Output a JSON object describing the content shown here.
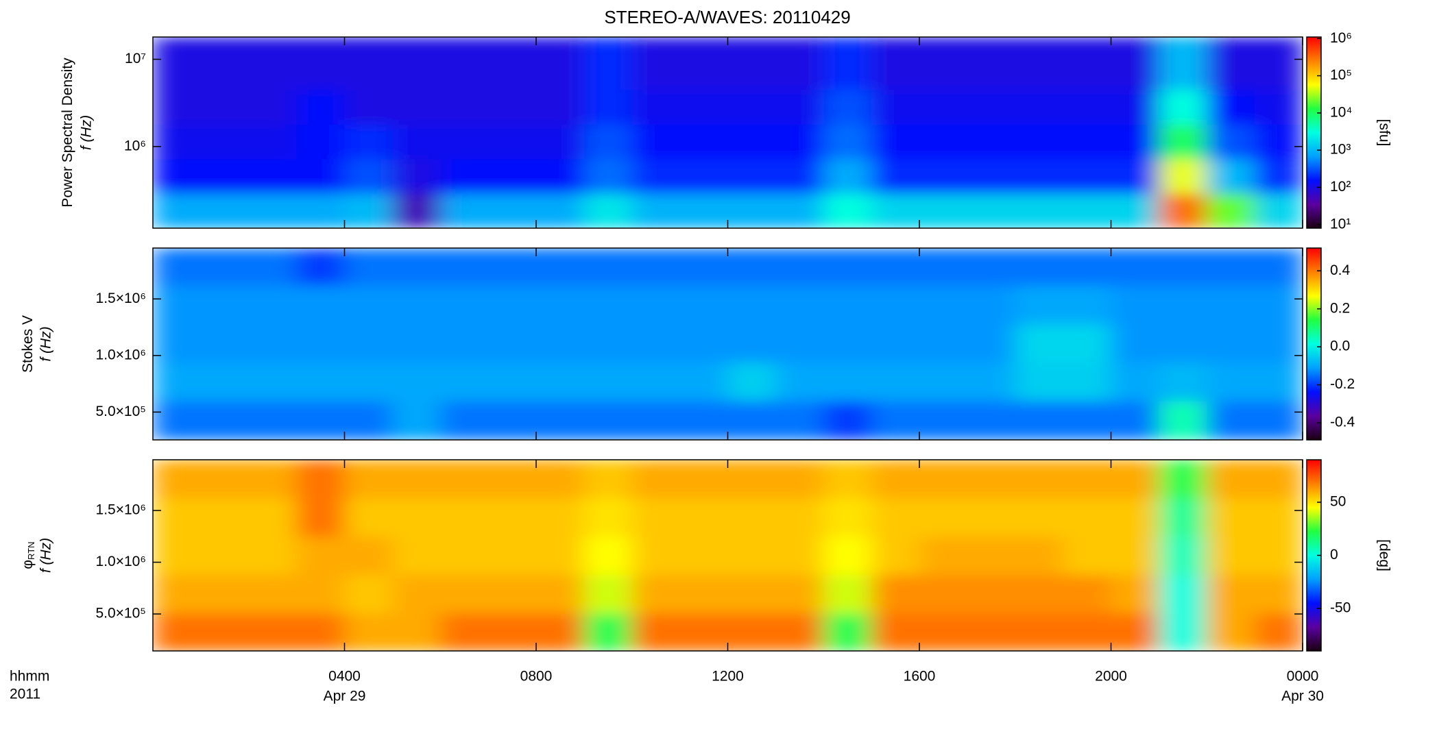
{
  "chart_data": {
    "type": "heatmap-stack",
    "title": "STEREO-A/WAVES: 20110429",
    "xlim": [
      0,
      24
    ],
    "xticks": [
      {
        "value": 4,
        "label": "0400"
      },
      {
        "value": 8,
        "label": "0800"
      },
      {
        "value": 12,
        "label": "1200"
      },
      {
        "value": 16,
        "label": "1600"
      },
      {
        "value": 20,
        "label": "2000"
      },
      {
        "value": 24,
        "label": "0000"
      }
    ],
    "date_labels": [
      {
        "value": 4,
        "label": "Apr 29"
      },
      {
        "value": 24,
        "label": "Apr 30"
      }
    ],
    "x_label": "hhmm",
    "x_sublabel": "2011",
    "x_edges": [
      0,
      1,
      2,
      3,
      4,
      5,
      6,
      7,
      8,
      9,
      10,
      11,
      12,
      13,
      14,
      15,
      16,
      17,
      18,
      19,
      20,
      21,
      22,
      23,
      24
    ],
    "colormap": [
      "#1a0010",
      "#5a00a0",
      "#0010ff",
      "#00a0ff",
      "#00ffe0",
      "#20ff40",
      "#ffff00",
      "#ff8000",
      "#ff0000"
    ],
    "panels": [
      {
        "type": "heatmap",
        "ylabel": "Power Spectral Density",
        "ylabel2": "f (Hz)",
        "clabel": "[sfu]",
        "yscale": "log",
        "cscale": "log",
        "ylim": [
          116000,
          18000000
        ],
        "yticks": [
          {
            "value": 1000000,
            "label": "10⁶"
          },
          {
            "value": 10000000,
            "label": "10⁷"
          }
        ],
        "clim": [
          8,
          1100000
        ],
        "cticks": [
          {
            "value": 10,
            "label": "10¹"
          },
          {
            "value": 100,
            "label": "10²"
          },
          {
            "value": 1000,
            "label": "10³"
          },
          {
            "value": 10000,
            "label": "10⁴"
          },
          {
            "value": 100000,
            "label": "10⁵"
          },
          {
            "value": 1000000,
            "label": "10⁶"
          }
        ],
        "y_edges": [
          116000,
          290000,
          720000,
          1800000,
          4500000,
          18000000
        ],
        "z": [
          [
            800,
            800,
            800,
            800,
            1000,
            50,
            800,
            800,
            800,
            2000,
            900,
            900,
            900,
            900,
            3000,
            1500,
            1500,
            1500,
            1500,
            1500,
            1500,
            300000,
            20000,
            1500
          ],
          [
            150,
            150,
            150,
            150,
            300,
            100,
            150,
            150,
            150,
            400,
            200,
            200,
            200,
            200,
            800,
            200,
            200,
            200,
            200,
            200,
            200,
            50000,
            1000,
            200
          ],
          [
            120,
            120,
            120,
            150,
            200,
            120,
            120,
            120,
            120,
            300,
            150,
            150,
            150,
            150,
            400,
            150,
            150,
            150,
            150,
            150,
            150,
            10000,
            300,
            150
          ],
          [
            100,
            100,
            100,
            150,
            100,
            100,
            100,
            100,
            100,
            200,
            120,
            120,
            120,
            120,
            300,
            120,
            120,
            120,
            120,
            120,
            120,
            3000,
            150,
            120
          ],
          [
            100,
            100,
            100,
            100,
            100,
            100,
            100,
            100,
            100,
            200,
            100,
            100,
            100,
            100,
            200,
            100,
            100,
            100,
            100,
            100,
            100,
            1000,
            100,
            100
          ]
        ]
      },
      {
        "type": "heatmap",
        "ylabel": "Stokes V",
        "ylabel2": "f (Hz)",
        "yscale": "linear",
        "cscale": "linear",
        "ylim": [
          254000,
          1950000
        ],
        "yticks": [
          {
            "value": 500000,
            "label": "5.0×10⁵"
          },
          {
            "value": 1000000,
            "label": "1.0×10⁶"
          },
          {
            "value": 1500000,
            "label": "1.5×10⁶"
          }
        ],
        "clim": [
          -0.49,
          0.52
        ],
        "cticks": [
          -0.4,
          -0.2,
          {
            "value": 0,
            "label": "0.0"
          },
          0.2,
          0.4
        ],
        "y_edges": [
          254000,
          600000,
          940000,
          1280000,
          1620000,
          1950000
        ],
        "z": [
          [
            -0.15,
            -0.15,
            -0.15,
            -0.15,
            -0.15,
            -0.1,
            -0.15,
            -0.15,
            -0.15,
            -0.15,
            -0.15,
            -0.15,
            -0.15,
            -0.15,
            -0.2,
            -0.15,
            -0.15,
            -0.15,
            -0.15,
            -0.15,
            -0.15,
            0.05,
            -0.15,
            -0.15
          ],
          [
            -0.1,
            -0.1,
            -0.1,
            -0.1,
            -0.1,
            -0.1,
            -0.1,
            -0.1,
            -0.1,
            -0.1,
            -0.1,
            -0.1,
            -0.05,
            -0.1,
            -0.1,
            -0.1,
            -0.1,
            -0.1,
            -0.05,
            -0.05,
            -0.1,
            -0.08,
            -0.1,
            -0.1
          ],
          [
            -0.12,
            -0.12,
            -0.12,
            -0.12,
            -0.12,
            -0.12,
            -0.12,
            -0.12,
            -0.12,
            -0.12,
            -0.12,
            -0.12,
            -0.12,
            -0.12,
            -0.12,
            -0.12,
            -0.12,
            -0.12,
            -0.04,
            -0.04,
            -0.12,
            -0.12,
            -0.12,
            -0.12
          ],
          [
            -0.12,
            -0.12,
            -0.12,
            -0.12,
            -0.12,
            -0.12,
            -0.12,
            -0.12,
            -0.12,
            -0.12,
            -0.12,
            -0.12,
            -0.12,
            -0.12,
            -0.12,
            -0.12,
            -0.12,
            -0.12,
            -0.1,
            -0.1,
            -0.12,
            -0.12,
            -0.12,
            -0.12
          ],
          [
            -0.15,
            -0.15,
            -0.15,
            -0.2,
            -0.15,
            -0.15,
            -0.15,
            -0.15,
            -0.15,
            -0.15,
            -0.15,
            -0.15,
            -0.15,
            -0.15,
            -0.15,
            -0.15,
            -0.15,
            -0.15,
            -0.15,
            -0.15,
            -0.15,
            -0.15,
            -0.15,
            -0.15
          ]
        ]
      },
      {
        "type": "heatmap",
        "ylabel": "φ",
        "ylabel_sub": "RTN",
        "ylabel2": "f (Hz)",
        "clabel": "[deg]",
        "yscale": "linear",
        "cscale": "linear",
        "ylim": [
          143000,
          1990000
        ],
        "yticks": [
          {
            "value": 500000,
            "label": "5.0×10⁵"
          },
          {
            "value": 1000000,
            "label": "1.0×10⁶"
          },
          {
            "value": 1500000,
            "label": "1.5×10⁶"
          }
        ],
        "clim": [
          -90,
          90
        ],
        "cticks": [
          -50,
          0,
          50
        ],
        "y_edges": [
          143000,
          510000,
          880000,
          1250000,
          1620000,
          1990000
        ],
        "z": [
          [
            70,
            70,
            70,
            70,
            60,
            60,
            70,
            70,
            70,
            20,
            70,
            70,
            70,
            70,
            20,
            70,
            70,
            70,
            70,
            70,
            70,
            0,
            60,
            70
          ],
          [
            60,
            60,
            60,
            60,
            55,
            60,
            60,
            60,
            60,
            40,
            60,
            60,
            60,
            60,
            40,
            65,
            65,
            65,
            65,
            65,
            60,
            0,
            60,
            60
          ],
          [
            55,
            55,
            55,
            60,
            60,
            55,
            55,
            55,
            55,
            45,
            55,
            55,
            55,
            55,
            45,
            55,
            60,
            60,
            60,
            55,
            55,
            5,
            55,
            55
          ],
          [
            55,
            55,
            55,
            70,
            55,
            55,
            55,
            55,
            55,
            50,
            55,
            55,
            55,
            55,
            50,
            55,
            55,
            55,
            55,
            55,
            55,
            10,
            55,
            55
          ],
          [
            60,
            60,
            60,
            70,
            60,
            60,
            60,
            60,
            60,
            55,
            60,
            60,
            60,
            60,
            55,
            60,
            60,
            60,
            60,
            60,
            60,
            20,
            60,
            60
          ]
        ]
      }
    ]
  }
}
